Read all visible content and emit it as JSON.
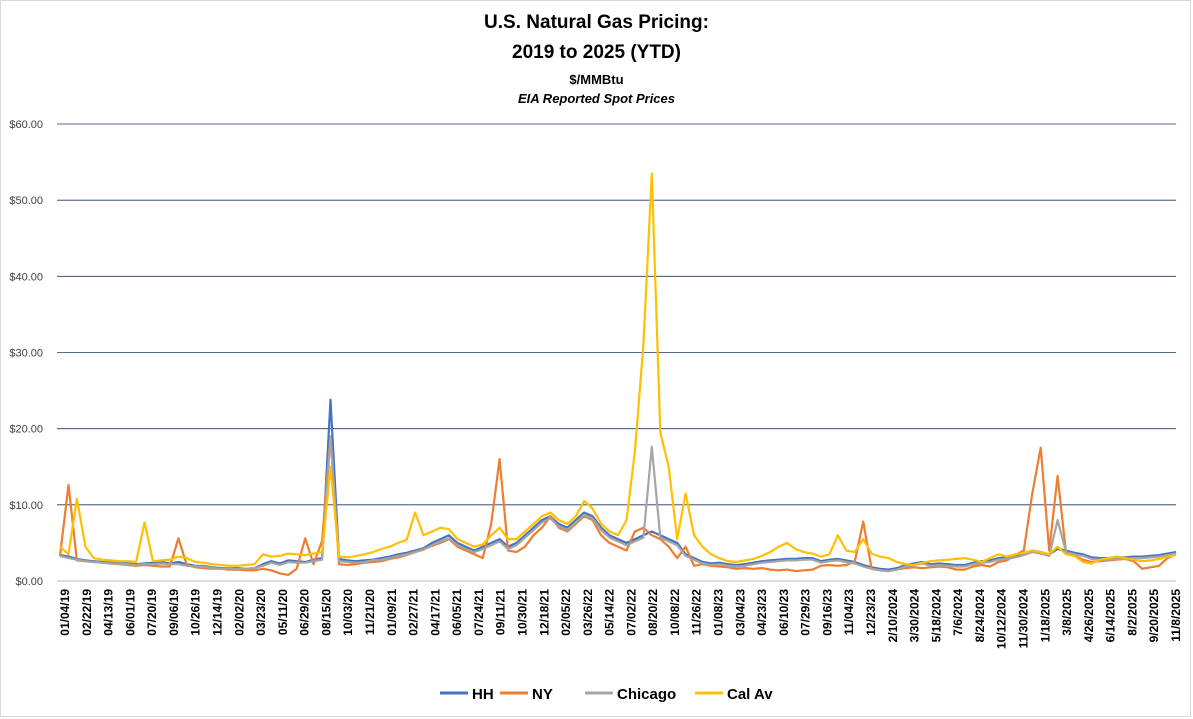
{
  "chart_data": {
    "type": "line",
    "title_line1": "U.S. Natural Gas Pricing:",
    "title_line2": "2019 to 2025 (YTD)",
    "subtitle": "$/MMBtu",
    "subtitle2": "EIA Reported Spot Prices",
    "xlabel": "",
    "ylabel": "",
    "ylim": [
      0,
      60
    ],
    "y_ticks": [
      "$0.00",
      "$10.00",
      "$20.00",
      "$30.00",
      "$40.00",
      "$50.00",
      "$60.00"
    ],
    "grid": "horizontal",
    "legend_position": "bottom",
    "x_labels": [
      "01/04/19",
      "02/22/19",
      "04/13/19",
      "06/01/19",
      "07/20/19",
      "09/06/19",
      "10/26/19",
      "12/14/19",
      "02/02/20",
      "03/23/20",
      "05/11/20",
      "06/29/20",
      "08/15/20",
      "10/03/20",
      "11/21/20",
      "01/09/21",
      "02/27/21",
      "04/17/21",
      "06/05/21",
      "07/24/21",
      "09/11/21",
      "10/30/21",
      "12/18/21",
      "02/05/22",
      "03/26/22",
      "05/14/22",
      "07/02/22",
      "08/20/22",
      "10/08/22",
      "11/26/22",
      "01/08/23",
      "03/04/23",
      "04/23/23",
      "06/10/23",
      "07/29/23",
      "09/16/23",
      "11/04/23",
      "12/23/23",
      "2/10/2024",
      "3/30/2024",
      "5/18/2024",
      "7/6/2024",
      "8/24/2024",
      "10/12/2024",
      "11/30/2024",
      "1/18/2025",
      "3/8/2025",
      "4/26/2025",
      "6/14/2025",
      "8/2/2025",
      "9/20/2025",
      "11/8/2025"
    ],
    "series": [
      {
        "name": "HH",
        "color": "#4472c4",
        "values": [
          3.4,
          3.2,
          2.9,
          2.7,
          2.6,
          2.5,
          2.4,
          2.4,
          2.3,
          2.2,
          2.3,
          2.4,
          2.5,
          2.3,
          2.5,
          2.2,
          2.0,
          2.0,
          1.8,
          1.7,
          1.7,
          1.7,
          1.6,
          1.7,
          2.2,
          2.6,
          2.3,
          2.7,
          2.6,
          2.5,
          2.8,
          3.0,
          23.8,
          2.9,
          2.7,
          2.6,
          2.7,
          2.8,
          3.0,
          3.2,
          3.5,
          3.7,
          4.0,
          4.3,
          5.0,
          5.5,
          6.0,
          5.0,
          4.5,
          4.0,
          4.5,
          5.0,
          5.5,
          4.5,
          5.0,
          6.0,
          7.0,
          8.0,
          8.5,
          7.5,
          7.0,
          8.0,
          9.0,
          8.5,
          7.0,
          6.0,
          5.5,
          5.0,
          5.5,
          6.0,
          6.5,
          6.0,
          5.5,
          5.0,
          3.5,
          3.0,
          2.5,
          2.3,
          2.4,
          2.2,
          2.1,
          2.2,
          2.4,
          2.6,
          2.7,
          2.8,
          2.9,
          2.9,
          3.0,
          3.0,
          2.6,
          2.8,
          2.9,
          2.7,
          2.5,
          2.1,
          1.8,
          1.6,
          1.5,
          1.7,
          2.1,
          2.3,
          2.5,
          2.2,
          2.3,
          2.2,
          2.1,
          2.1,
          2.4,
          2.6,
          2.7,
          3.0,
          3.1,
          3.3,
          3.6,
          4.0,
          3.8,
          3.5,
          4.2,
          4.0,
          3.7,
          3.5,
          3.1,
          3.0,
          3.0,
          3.1,
          3.1,
          3.2,
          3.2,
          3.3,
          3.4,
          3.6,
          3.8
        ]
      },
      {
        "name": "NY",
        "color": "#ed7d31",
        "values": [
          3.3,
          12.6,
          2.7,
          2.6,
          2.5,
          2.4,
          2.3,
          2.2,
          2.1,
          2.0,
          2.1,
          2.0,
          1.9,
          1.9,
          5.6,
          2.1,
          1.8,
          1.7,
          1.6,
          1.6,
          1.5,
          1.5,
          1.4,
          1.4,
          1.6,
          1.4,
          1.0,
          0.8,
          1.6,
          5.6,
          2.2,
          5.3,
          19.0,
          2.2,
          2.1,
          2.2,
          2.4,
          2.5,
          2.6,
          2.9,
          3.1,
          3.4,
          3.8,
          4.2,
          4.6,
          5.0,
          5.5,
          4.5,
          4.0,
          3.5,
          3.0,
          7.5,
          16.0,
          4.0,
          3.8,
          4.5,
          6.0,
          7.0,
          8.5,
          7.0,
          6.5,
          7.5,
          8.5,
          8.0,
          6.0,
          5.0,
          4.5,
          4.0,
          6.5,
          7.0,
          6.0,
          5.5,
          4.5,
          3.0,
          4.5,
          2.0,
          2.2,
          2.0,
          1.9,
          1.8,
          1.6,
          1.7,
          1.6,
          1.7,
          1.5,
          1.4,
          1.5,
          1.3,
          1.4,
          1.5,
          2.0,
          2.1,
          2.0,
          2.1,
          2.5,
          7.8,
          1.6,
          1.4,
          1.3,
          1.5,
          1.7,
          1.8,
          1.7,
          1.8,
          1.9,
          1.8,
          1.5,
          1.5,
          1.9,
          2.1,
          1.9,
          2.5,
          2.7,
          3.4,
          4.0,
          11.5,
          17.5,
          4.0,
          13.8,
          3.6,
          3.3,
          2.8,
          2.5,
          2.6,
          2.7,
          2.8,
          2.9,
          2.6,
          1.6,
          1.8,
          2.0,
          3.0,
          3.5
        ]
      },
      {
        "name": "Chicago",
        "color": "#a5a5a5",
        "values": [
          3.3,
          3.0,
          2.8,
          2.6,
          2.5,
          2.4,
          2.3,
          2.3,
          2.2,
          2.1,
          2.2,
          2.2,
          2.3,
          2.2,
          2.2,
          2.0,
          1.9,
          1.9,
          1.7,
          1.6,
          1.7,
          1.6,
          1.6,
          1.7,
          2.0,
          2.4,
          2.1,
          2.5,
          2.4,
          2.4,
          2.6,
          2.8,
          19.0,
          2.6,
          2.5,
          2.4,
          2.5,
          2.7,
          2.8,
          3.0,
          3.3,
          3.5,
          3.8,
          4.1,
          4.7,
          5.2,
          5.6,
          4.7,
          4.2,
          3.8,
          4.2,
          4.7,
          5.2,
          4.2,
          4.7,
          5.7,
          6.7,
          7.7,
          8.2,
          7.2,
          6.7,
          7.7,
          8.7,
          8.2,
          6.7,
          5.7,
          5.2,
          4.7,
          5.2,
          5.7,
          17.6,
          5.7,
          5.2,
          4.7,
          3.3,
          2.8,
          2.3,
          2.1,
          2.2,
          2.0,
          1.9,
          2.0,
          2.2,
          2.4,
          2.5,
          2.6,
          2.7,
          2.7,
          2.8,
          2.8,
          2.4,
          2.6,
          2.7,
          2.5,
          2.3,
          1.9,
          1.6,
          1.4,
          1.3,
          1.5,
          1.9,
          2.1,
          2.3,
          2.0,
          2.1,
          2.0,
          1.9,
          1.9,
          2.2,
          2.4,
          2.5,
          2.8,
          2.9,
          3.1,
          3.4,
          3.8,
          3.6,
          3.3,
          8.0,
          3.8,
          3.5,
          3.3,
          2.9,
          2.8,
          2.8,
          2.9,
          2.9,
          3.0,
          3.0,
          3.1,
          3.2,
          3.4,
          3.6
        ]
      },
      {
        "name": "Cal Av",
        "color": "#ffc000",
        "values": [
          4.5,
          3.5,
          10.8,
          4.5,
          3.0,
          2.8,
          2.7,
          2.6,
          2.6,
          2.5,
          7.7,
          2.6,
          2.7,
          2.8,
          3.2,
          3.0,
          2.5,
          2.4,
          2.2,
          2.1,
          2.0,
          2.0,
          2.1,
          2.2,
          3.5,
          3.2,
          3.3,
          3.6,
          3.5,
          3.4,
          3.6,
          3.8,
          15.0,
          3.2,
          3.1,
          3.3,
          3.5,
          3.8,
          4.2,
          4.5,
          5.0,
          5.4,
          9.0,
          6.0,
          6.5,
          7.0,
          6.8,
          5.5,
          5.0,
          4.5,
          4.8,
          6.0,
          7.0,
          5.5,
          5.5,
          6.5,
          7.5,
          8.5,
          9.0,
          8.0,
          7.5,
          8.5,
          10.5,
          9.5,
          7.5,
          6.5,
          6.0,
          8.0,
          17.0,
          31.0,
          53.5,
          19.5,
          15.0,
          5.5,
          11.5,
          6.0,
          4.5,
          3.5,
          3.0,
          2.6,
          2.5,
          2.7,
          2.9,
          3.3,
          3.8,
          4.5,
          5.0,
          4.2,
          3.8,
          3.6,
          3.2,
          3.5,
          6.0,
          4.0,
          3.8,
          5.5,
          3.6,
          3.2,
          3.0,
          2.5,
          2.2,
          2.1,
          2.4,
          2.6,
          2.7,
          2.8,
          2.9,
          3.0,
          2.8,
          2.5,
          3.0,
          3.5,
          3.2,
          3.5,
          3.7,
          4.0,
          3.8,
          3.5,
          4.5,
          3.5,
          3.3,
          2.5,
          2.3,
          2.8,
          3.0,
          3.2,
          3.0,
          2.8,
          2.6,
          2.7,
          2.9,
          3.2,
          3.4
        ]
      }
    ]
  }
}
